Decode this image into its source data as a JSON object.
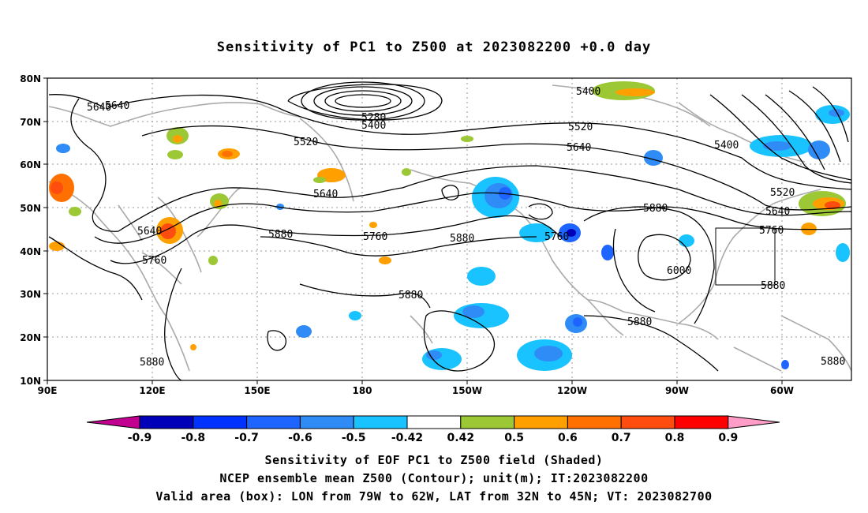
{
  "title": "Sensitivity of PC1 to Z500 at 2023082200 +0.0 day",
  "map": {
    "lat_labels": [
      "80N",
      "70N",
      "60N",
      "50N",
      "40N",
      "30N",
      "20N",
      "10N"
    ],
    "lon_labels": [
      "90E",
      "120E",
      "150E",
      "180",
      "150W",
      "120W",
      "90W",
      "60W"
    ],
    "contour_labels": [
      "5400",
      "5280",
      "5400",
      "5520",
      "5640",
      "5640",
      "5640",
      "5760",
      "5880",
      "5880",
      "5640",
      "5760",
      "5880",
      "5880",
      "5520",
      "5640",
      "5760",
      "5880",
      "6000",
      "5880",
      "5880",
      "5400",
      "5520",
      "5640",
      "5760",
      "5880"
    ],
    "valid_box": {
      "lon": [
        -79,
        -62
      ],
      "lat": [
        32,
        45
      ]
    }
  },
  "colorbar": {
    "colors": [
      "#c2008f",
      "#0000b8",
      "#0032ff",
      "#1e64ff",
      "#2f8cf7",
      "#19c3ff",
      "#ffffff",
      "#9bc834",
      "#ffa000",
      "#ff7000",
      "#ff4d10",
      "#ff0000",
      "#ff9cc8"
    ],
    "labels": [
      "-0.9",
      "-0.8",
      "-0.7",
      "-0.6",
      "-0.5",
      "-0.42",
      "0.42",
      "0.5",
      "0.6",
      "0.7",
      "0.8",
      "0.9"
    ]
  },
  "caption": {
    "line1": "Sensitivity of EOF PC1 to Z500 field (Shaded)",
    "line2": "NCEP ensemble mean Z500 (Contour); unit(m); IT:2023082200",
    "line3": "Valid area (box): LON from 79W to 62W, LAT from 32N to 45N; VT: 2023082700"
  }
}
